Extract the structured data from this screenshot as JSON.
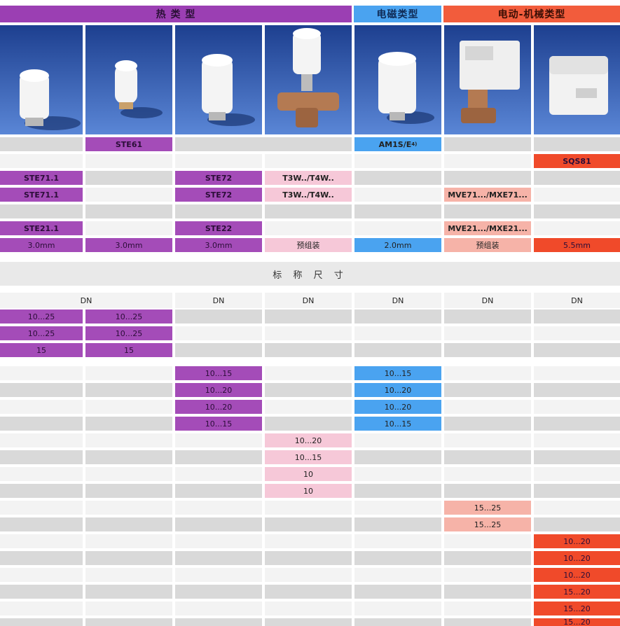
{
  "headers": [
    {
      "label": "热 类 型",
      "bg": "#9b3fb3",
      "color": "#2a1036"
    },
    {
      "label": "电磁类型",
      "bg": "#4aa3f0",
      "color": "#0f2a55"
    },
    {
      "label": "电动-机械类型",
      "bg": "#f25c3c",
      "color": "#3a0e05"
    }
  ],
  "colors": {
    "purple": "#a44cb8",
    "blue": "#4aa3f0",
    "pink": "#f6c8d8",
    "salmon": "#f6b3a8",
    "red": "#f04a2a",
    "gray": "#d9d9d9",
    "white": "#f3f3f3"
  },
  "photos": [
    "actuator-round-white",
    "actuator-small-white",
    "actuator-tall-white",
    "valve-with-actuator",
    "solenoid-actuator",
    "motor-valve-assembly",
    "motor-actuator-box"
  ],
  "products": {
    "ste61": "STE61",
    "am1s": "AM1S/E",
    "am1s_note": "4)",
    "sqs81": "SQS81",
    "ste71_a": "STE71.1",
    "ste72_a": "STE72",
    "t3w_a": "T3W../T4W..",
    "ste71_b": "STE71.1",
    "ste72_b": "STE72",
    "t3w_b": "T3W../T4W..",
    "mve71": "MVE71.../MXE71...",
    "ste21": "STE21.1",
    "ste22": "STE22",
    "mve21": "MVE21.../MXE21...",
    "stroke": [
      "3.0mm",
      "3.0mm",
      "3.0mm",
      "预组装",
      "2.0mm",
      "预组装",
      "5.5mm"
    ]
  },
  "section_title": "标 称 尺 寸",
  "dn_headers": [
    "DN",
    "DN",
    "DN",
    "DN",
    "DN",
    "DN"
  ],
  "dn_values": {
    "ste_a": [
      "10...25",
      "10...25"
    ],
    "ste_b": [
      "10...25",
      "10...25"
    ],
    "ste_c": [
      "15",
      "15"
    ],
    "c2": [
      "10...15",
      "10...20",
      "10...20",
      "10...15"
    ],
    "c4": [
      "10...15",
      "10...20",
      "10...20",
      "10...15"
    ],
    "c3": [
      "10...20",
      "10...15",
      "10",
      "10"
    ],
    "c5": [
      "15...25",
      "15...25"
    ],
    "c6": [
      "10...20",
      "10...20",
      "10...20",
      "15...20",
      "15...20",
      "15...20"
    ]
  }
}
